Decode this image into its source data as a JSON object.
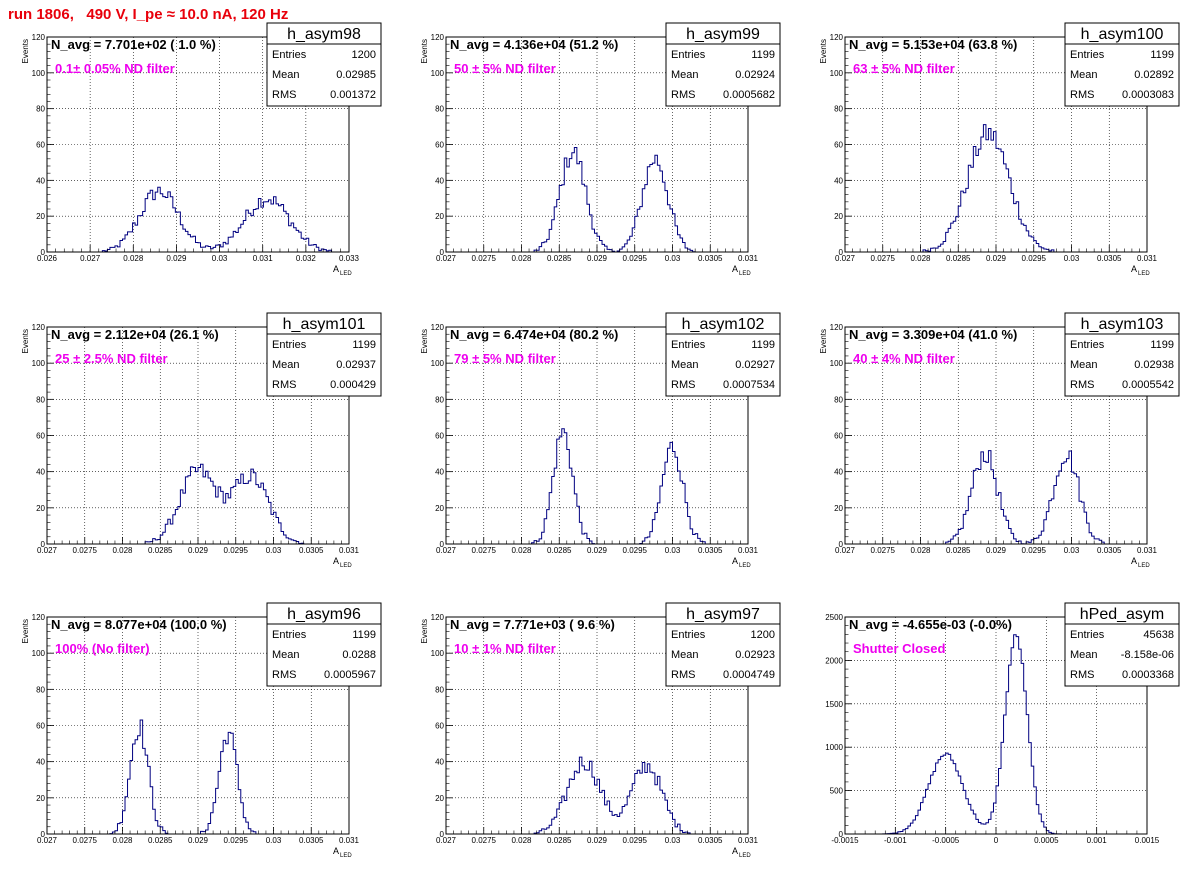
{
  "run_title": "run 1806,   490 V, I_pe ≈ 10.0 nA, 120 Hz",
  "colors": {
    "histogram": "#000080",
    "annotation": "#ee00ee",
    "title": "#e8000b",
    "grid": "#000000"
  },
  "chart_data": [
    {
      "type": "histogram",
      "name": "h_asym98",
      "nav": "N_avg = 7.701e+02 ( 1.0 %)",
      "note": "0.1± 0.05% ND filter",
      "stats": [
        [
          "Entries",
          "1200"
        ],
        [
          "Mean",
          "0.02985"
        ],
        [
          "RMS",
          "0.001372"
        ]
      ],
      "ylabel": "Events",
      "xlabel": "A",
      "xlabel_sub": "LED",
      "xlim": [
        0.026,
        0.033
      ],
      "ylim": [
        0,
        120
      ],
      "xticks": [
        0.026,
        0.027,
        0.028,
        0.029,
        0.03,
        0.031,
        0.032,
        0.033
      ],
      "xticklabels": [
        "0.026",
        "0.027",
        "0.028",
        "0.029",
        "0.03",
        "0.031",
        "0.032",
        "0.033"
      ],
      "yticks": [
        0,
        20,
        40,
        60,
        80,
        100,
        120
      ],
      "yticklabels": [
        "0",
        "20",
        "40",
        "60",
        "80",
        "100",
        "120"
      ],
      "bins": 120,
      "peaks": [
        {
          "mu": 0.0286,
          "sigma": 0.00045,
          "amp": 34
        },
        {
          "mu": 0.0311,
          "sigma": 0.00052,
          "amp": 30
        }
      ]
    },
    {
      "type": "histogram",
      "name": "h_asym99",
      "nav": "N_avg = 4.136e+04 (51.2 %)",
      "note": "50 ± 5% ND filter",
      "stats": [
        [
          "Entries",
          "1199"
        ],
        [
          "Mean",
          "0.02924"
        ],
        [
          "RMS",
          "0.0005682"
        ]
      ],
      "ylabel": "Events",
      "xlabel": "A",
      "xlabel_sub": "LED",
      "xlim": [
        0.027,
        0.031
      ],
      "ylim": [
        0,
        120
      ],
      "xticks": [
        0.027,
        0.0275,
        0.028,
        0.0285,
        0.029,
        0.0295,
        0.03,
        0.0305,
        0.031
      ],
      "xticklabels": [
        "0.027",
        "0.0275",
        "0.028",
        "0.0285",
        "0.029",
        "0.0295",
        "0.03",
        "0.0305",
        "0.031"
      ],
      "yticks": [
        0,
        20,
        40,
        60,
        80,
        100,
        120
      ],
      "yticklabels": [
        "0",
        "20",
        "40",
        "60",
        "80",
        "100",
        "120"
      ],
      "bins": 120,
      "peaks": [
        {
          "mu": 0.02868,
          "sigma": 0.00017,
          "amp": 56
        },
        {
          "mu": 0.02977,
          "sigma": 0.00017,
          "amp": 52
        }
      ]
    },
    {
      "type": "histogram",
      "name": "h_asym100",
      "nav": "N_avg = 5.153e+04 (63.8 %)",
      "note": "63 ± 5% ND filter",
      "stats": [
        [
          "Entries",
          "1199"
        ],
        [
          "Mean",
          "0.02892"
        ],
        [
          "RMS",
          "0.0003083"
        ]
      ],
      "ylabel": "Events",
      "xlabel": "A",
      "xlabel_sub": "LED",
      "xlim": [
        0.027,
        0.031
      ],
      "ylim": [
        0,
        120
      ],
      "xticks": [
        0.027,
        0.0275,
        0.028,
        0.0285,
        0.029,
        0.0295,
        0.03,
        0.0305,
        0.031
      ],
      "xticklabels": [
        "0.027",
        "0.0275",
        "0.028",
        "0.0285",
        "0.029",
        "0.0295",
        "0.03",
        "0.0305",
        "0.031"
      ],
      "yticks": [
        0,
        20,
        40,
        60,
        80,
        100,
        120
      ],
      "yticklabels": [
        "0",
        "20",
        "40",
        "60",
        "80",
        "100",
        "120"
      ],
      "bins": 120,
      "peaks": [
        {
          "mu": 0.0289,
          "sigma": 0.00028,
          "amp": 66
        }
      ]
    },
    {
      "type": "histogram",
      "name": "h_asym101",
      "nav": "N_avg = 2.112e+04 (26.1 %)",
      "note": "25 ± 2.5% ND filter",
      "stats": [
        [
          "Entries",
          "1199"
        ],
        [
          "Mean",
          "0.02937"
        ],
        [
          "RMS",
          "0.000429"
        ]
      ],
      "ylabel": "Events",
      "xlabel": "A",
      "xlabel_sub": "LED",
      "xlim": [
        0.027,
        0.031
      ],
      "ylim": [
        0,
        120
      ],
      "xticks": [
        0.027,
        0.0275,
        0.028,
        0.0285,
        0.029,
        0.0295,
        0.03,
        0.0305,
        0.031
      ],
      "xticklabels": [
        "0.027",
        "0.0275",
        "0.028",
        "0.0285",
        "0.029",
        "0.0295",
        "0.03",
        "0.0305",
        "0.031"
      ],
      "yticks": [
        0,
        20,
        40,
        60,
        80,
        100,
        120
      ],
      "yticklabels": [
        "0",
        "20",
        "40",
        "60",
        "80",
        "100",
        "120"
      ],
      "bins": 120,
      "peaks": [
        {
          "mu": 0.029,
          "sigma": 0.00024,
          "amp": 40
        },
        {
          "mu": 0.0297,
          "sigma": 0.00024,
          "amp": 37
        }
      ]
    },
    {
      "type": "histogram",
      "name": "h_asym102",
      "nav": "N_avg = 6.474e+04 (80.2 %)",
      "note": "79 ± 5% ND filter",
      "stats": [
        [
          "Entries",
          "1199"
        ],
        [
          "Mean",
          "0.02927"
        ],
        [
          "RMS",
          "0.0007534"
        ]
      ],
      "ylabel": "Events",
      "xlabel": "A",
      "xlabel_sub": "LED",
      "xlim": [
        0.027,
        0.031
      ],
      "ylim": [
        0,
        120
      ],
      "xticks": [
        0.027,
        0.0275,
        0.028,
        0.0285,
        0.029,
        0.0295,
        0.03,
        0.0305,
        0.031
      ],
      "xticklabels": [
        "0.027",
        "0.0275",
        "0.028",
        "0.0285",
        "0.029",
        "0.0295",
        "0.03",
        "0.0305",
        "0.031"
      ],
      "yticks": [
        0,
        20,
        40,
        60,
        80,
        100,
        120
      ],
      "yticklabels": [
        "0",
        "20",
        "40",
        "60",
        "80",
        "100",
        "120"
      ],
      "bins": 120,
      "peaks": [
        {
          "mu": 0.02855,
          "sigma": 0.00013,
          "amp": 62
        },
        {
          "mu": 0.03,
          "sigma": 0.00014,
          "amp": 54
        }
      ]
    },
    {
      "type": "histogram",
      "name": "h_asym103",
      "nav": "N_avg = 3.309e+04 (41.0 %)",
      "note": "40 ± 4% ND filter",
      "stats": [
        [
          "Entries",
          "1199"
        ],
        [
          "Mean",
          "0.02938"
        ],
        [
          "RMS",
          "0.0005542"
        ]
      ],
      "ylabel": "Events",
      "xlabel": "A",
      "xlabel_sub": "LED",
      "xlim": [
        0.027,
        0.031
      ],
      "ylim": [
        0,
        120
      ],
      "xticks": [
        0.027,
        0.0275,
        0.028,
        0.0285,
        0.029,
        0.0295,
        0.03,
        0.0305,
        0.031
      ],
      "xticklabels": [
        "0.027",
        "0.0275",
        "0.028",
        "0.0285",
        "0.029",
        "0.0295",
        "0.03",
        "0.0305",
        "0.031"
      ],
      "yticks": [
        0,
        20,
        40,
        60,
        80,
        100,
        120
      ],
      "yticklabels": [
        "0",
        "20",
        "40",
        "60",
        "80",
        "100",
        "120"
      ],
      "bins": 120,
      "peaks": [
        {
          "mu": 0.02885,
          "sigma": 0.00017,
          "amp": 50
        },
        {
          "mu": 0.02993,
          "sigma": 0.00017,
          "amp": 50
        }
      ]
    },
    {
      "type": "histogram",
      "name": "h_asym96",
      "nav": "N_avg = 8.077e+04 (100.0 %)",
      "note": "100% (No filter)",
      "stats": [
        [
          "Entries",
          "1199"
        ],
        [
          "Mean",
          "0.0288"
        ],
        [
          "RMS",
          "0.0005967"
        ]
      ],
      "ylabel": "Events",
      "xlabel": "A",
      "xlabel_sub": "LED",
      "xlim": [
        0.027,
        0.031
      ],
      "ylim": [
        0,
        120
      ],
      "xticks": [
        0.027,
        0.0275,
        0.028,
        0.0285,
        0.029,
        0.0295,
        0.03,
        0.0305,
        0.031
      ],
      "xticklabels": [
        "0.027",
        "0.0275",
        "0.028",
        "0.0285",
        "0.029",
        "0.0295",
        "0.03",
        "0.0305",
        "0.031"
      ],
      "yticks": [
        0,
        20,
        40,
        60,
        80,
        100,
        120
      ],
      "yticklabels": [
        "0",
        "20",
        "40",
        "60",
        "80",
        "100",
        "120"
      ],
      "bins": 120,
      "peaks": [
        {
          "mu": 0.02822,
          "sigma": 0.00012,
          "amp": 60
        },
        {
          "mu": 0.0294,
          "sigma": 0.00012,
          "amp": 56
        }
      ]
    },
    {
      "type": "histogram",
      "name": "h_asym97",
      "nav": "N_avg = 7.771e+03 ( 9.6 %)",
      "note": "10 ± 1% ND filter",
      "stats": [
        [
          "Entries",
          "1200"
        ],
        [
          "Mean",
          "0.02923"
        ],
        [
          "RMS",
          "0.0004749"
        ]
      ],
      "ylabel": "Events",
      "xlabel": "A",
      "xlabel_sub": "LED",
      "xlim": [
        0.027,
        0.031
      ],
      "ylim": [
        0,
        120
      ],
      "xticks": [
        0.027,
        0.0275,
        0.028,
        0.0285,
        0.029,
        0.0295,
        0.03,
        0.0305,
        0.031
      ],
      "xticklabels": [
        "0.027",
        "0.0275",
        "0.028",
        "0.0285",
        "0.029",
        "0.0295",
        "0.03",
        "0.0305",
        "0.031"
      ],
      "yticks": [
        0,
        20,
        40,
        60,
        80,
        100,
        120
      ],
      "yticklabels": [
        "0",
        "20",
        "40",
        "60",
        "80",
        "100",
        "120"
      ],
      "bins": 120,
      "peaks": [
        {
          "mu": 0.02883,
          "sigma": 0.00022,
          "amp": 40
        },
        {
          "mu": 0.02966,
          "sigma": 0.0002,
          "amp": 38
        }
      ]
    },
    {
      "type": "histogram",
      "name": "hPed_asym",
      "nav": "N_avg = -4.655e-03 (-0.0%)",
      "note": "Shutter Closed",
      "stats": [
        [
          "Entries",
          "45638"
        ],
        [
          "Mean",
          "-8.158e-06"
        ],
        [
          "RMS",
          "0.0003368"
        ]
      ],
      "ylabel": "",
      "xlabel": "",
      "xlabel_sub": "",
      "xlim": [
        -0.0015,
        0.0015
      ],
      "ylim": [
        0,
        2500
      ],
      "xticks": [
        -0.0015,
        -0.001,
        -0.0005,
        0,
        0.0005,
        0.001,
        0.0015
      ],
      "xticklabels": [
        "-0.0015",
        "-0.001",
        "-0.0005",
        "0",
        "0.0005",
        "0.001",
        "0.0015"
      ],
      "yticks": [
        0,
        500,
        1000,
        1500,
        2000,
        2500
      ],
      "yticklabels": [
        "0",
        "500",
        "1000",
        "1500",
        "2000",
        "2500"
      ],
      "bins": 120,
      "peaks": [
        {
          "mu": -0.0005,
          "sigma": 0.00017,
          "amp": 920
        },
        {
          "mu": 0.0002,
          "sigma": 0.00011,
          "amp": 2280
        }
      ]
    }
  ]
}
